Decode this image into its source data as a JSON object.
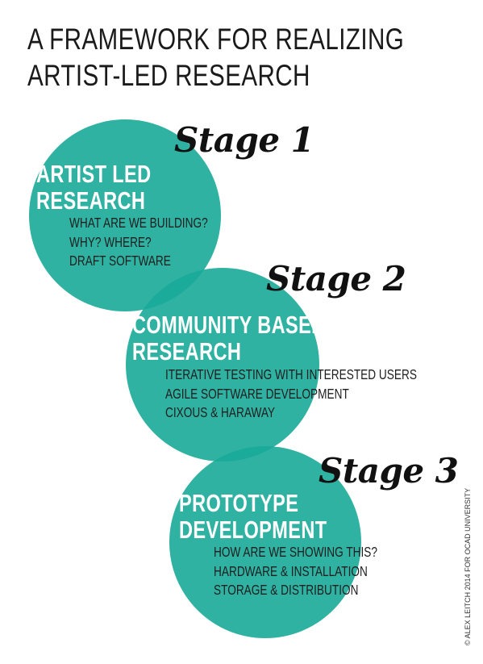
{
  "title": {
    "line1": "A FRAMEWORK FOR REALIZING",
    "line2": "ARTIST-LED RESEARCH"
  },
  "stages": [
    {
      "label": "Stage 1",
      "heading_line1": "ARTIST LED",
      "heading_line2": "RESEARCH",
      "items": [
        "WHAT ARE WE BUILDING?",
        "WHY? WHERE?",
        "DRAFT SOFTWARE"
      ]
    },
    {
      "label": "Stage 2",
      "heading_line1": "COMMUNITY BASED",
      "heading_line2": "RESEARCH",
      "items": [
        "ITERATIVE TESTING WITH INTERESTED USERS",
        "AGILE SOFTWARE DEVELOPMENT",
        "CIXOUS & HARAWAY"
      ]
    },
    {
      "label": "Stage 3",
      "heading_line1": "PROTOTYPE",
      "heading_line2": "DEVELOPMENT",
      "items": [
        "HOW ARE WE SHOWING THIS?",
        "HARDWARE & INSTALLATION",
        "STORAGE & DISTRIBUTION"
      ]
    }
  ],
  "credit": "© ALEX LEITCH 2014 FOR OCAD UNIVERSITY",
  "colors": {
    "circle": "#1aaa99",
    "text": "#1a1a1a",
    "heading": "#ffffff"
  }
}
